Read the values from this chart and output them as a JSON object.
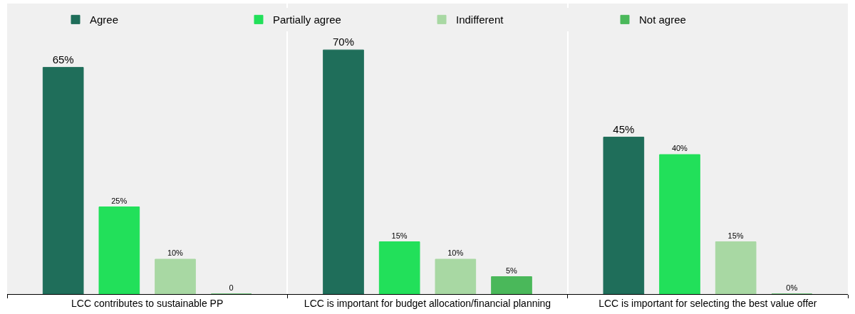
{
  "chart_data": {
    "type": "bar",
    "categories": [
      "LCC contributes to sustainable PP",
      "LCC is important for budget allocation/financial planning",
      "LCC is important for selecting the best value offer"
    ],
    "series": [
      {
        "name": "Agree",
        "color": "#1f6e5a",
        "values": [
          65,
          70,
          45
        ],
        "value_labels": [
          "65%",
          "70%",
          "45%"
        ]
      },
      {
        "name": "Partially agree",
        "color": "#22e05a",
        "values": [
          25,
          15,
          40
        ],
        "value_labels": [
          "25%",
          "15%",
          "40%"
        ]
      },
      {
        "name": "Indifferent",
        "color": "#a8d8a3",
        "values": [
          10,
          10,
          15
        ],
        "value_labels": [
          "10%",
          "10%",
          "15%"
        ]
      },
      {
        "name": "Not agree",
        "color": "#4ab85a",
        "values": [
          0,
          5,
          0
        ],
        "value_labels": [
          "0",
          "5%",
          "0%"
        ]
      }
    ],
    "legend": "top",
    "grid": "x",
    "tick_labels": "x"
  }
}
